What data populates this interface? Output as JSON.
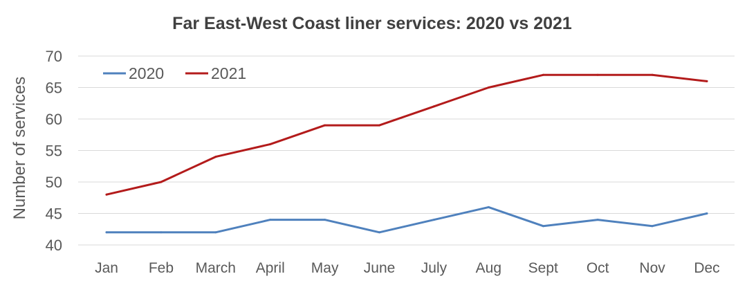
{
  "chart_data": {
    "type": "line",
    "title": "Far East-West Coast liner services: 2020 vs 2021",
    "xlabel": "",
    "ylabel": "Number of services",
    "categories": [
      "Jan",
      "Feb",
      "March",
      "April",
      "May",
      "June",
      "July",
      "Aug",
      "Sept",
      "Oct",
      "Nov",
      "Dec"
    ],
    "ylim": [
      40,
      70
    ],
    "yticks": [
      40,
      45,
      50,
      55,
      60,
      65,
      70
    ],
    "grid": true,
    "legend_position": "top-left",
    "series": [
      {
        "name": "2020",
        "color": "#4f81bd",
        "values": [
          42,
          42,
          42,
          44,
          44,
          42,
          44,
          46,
          43,
          44,
          43,
          45
        ]
      },
      {
        "name": "2021",
        "color": "#b31b1b",
        "values": [
          48,
          50,
          54,
          56,
          59,
          59,
          62,
          65,
          67,
          67,
          67,
          66
        ]
      }
    ]
  }
}
